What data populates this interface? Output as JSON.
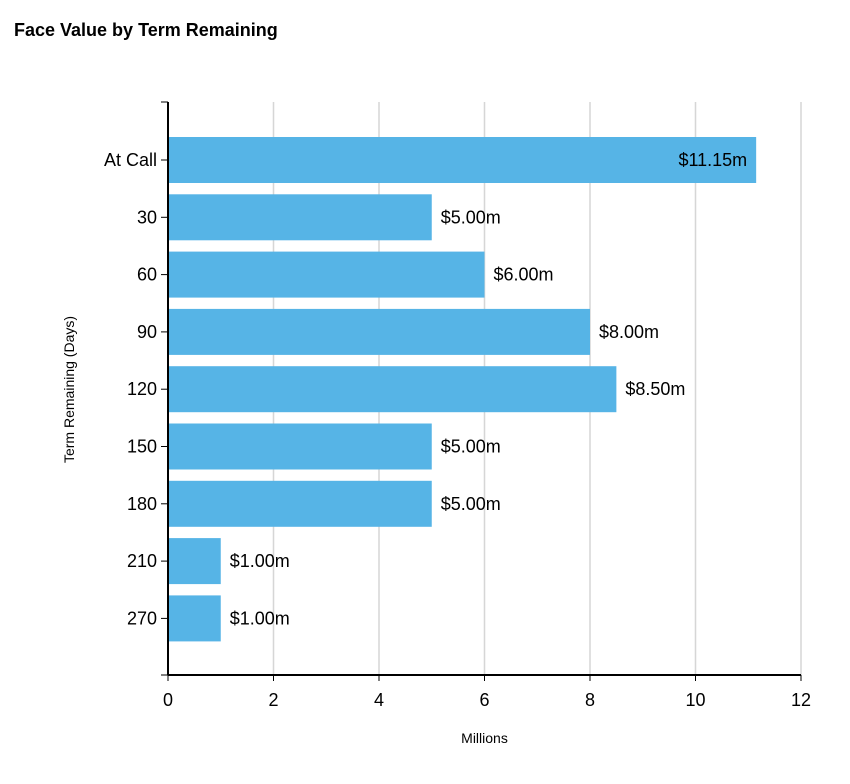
{
  "chart_data": {
    "type": "bar",
    "orientation": "horizontal",
    "title": "Face Value by Term Remaining",
    "xlabel": "Millions",
    "ylabel": "Term Remaining  (Days)",
    "categories": [
      "At Call",
      "30",
      "60",
      "90",
      "120",
      "150",
      "180",
      "210",
      "270"
    ],
    "values": [
      11.15,
      5.0,
      6.0,
      8.0,
      8.5,
      5.0,
      5.0,
      1.0,
      1.0
    ],
    "data_labels": [
      "$11.15m",
      "$5.00m",
      "$6.00m",
      "$8.00m",
      "$8.50m",
      "$5.00m",
      "$5.00m",
      "$1.00m",
      "$1.00m"
    ],
    "xlim": [
      0,
      12
    ],
    "xticks": [
      "0",
      "2",
      "4",
      "6",
      "8",
      "10",
      "12"
    ],
    "grid": true,
    "bar_color": "#56b4e6",
    "grid_color": "#d6d6d6"
  }
}
